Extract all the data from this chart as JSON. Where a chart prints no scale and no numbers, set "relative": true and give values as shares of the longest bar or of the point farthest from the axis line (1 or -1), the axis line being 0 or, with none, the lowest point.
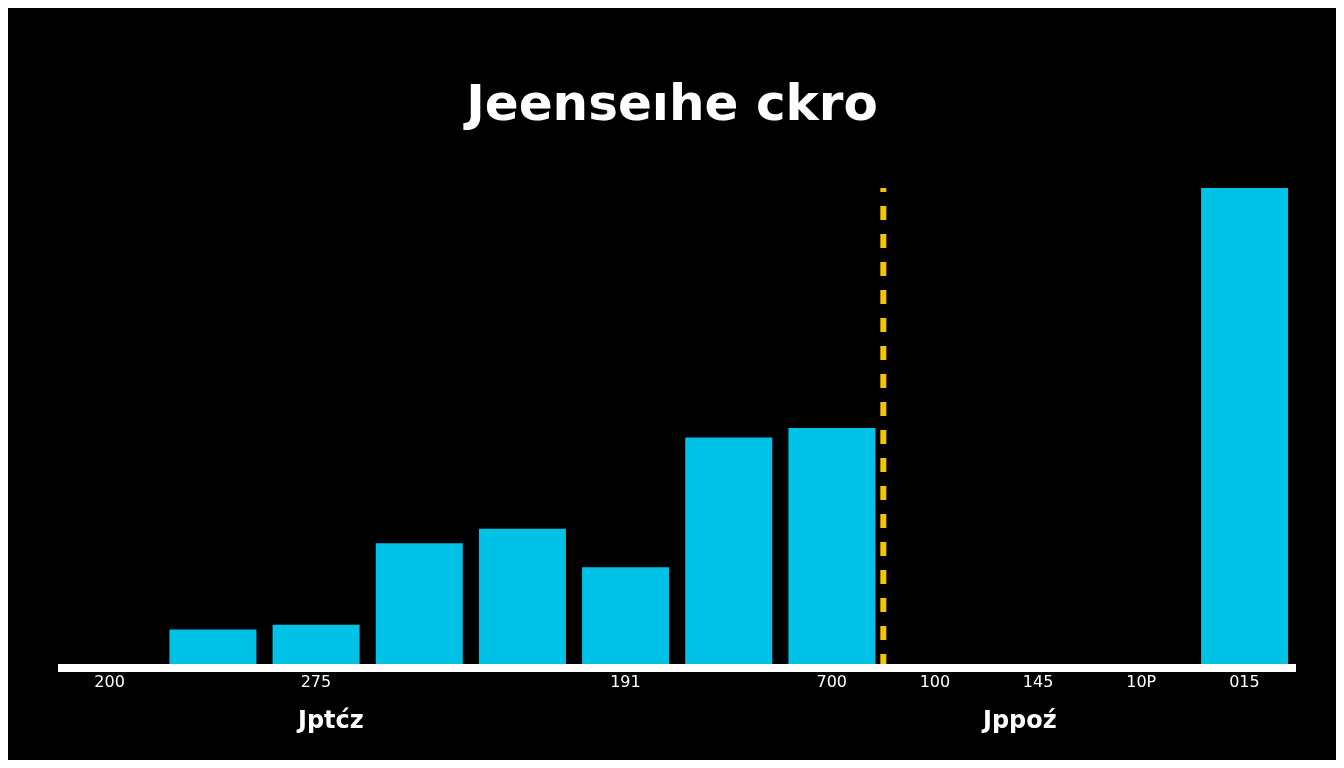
{
  "chart_data": {
    "type": "bar",
    "title": "Jeenseıhe ckro",
    "relative": true,
    "categories": [
      "200",
      null,
      "275",
      null,
      null,
      "191",
      null,
      "700",
      "100",
      "145",
      "10P",
      "015"
    ],
    "values": [
      null,
      0.08,
      0.09,
      0.26,
      0.29,
      0.21,
      0.48,
      0.5,
      null,
      null,
      null,
      1
    ],
    "color": "#00c2e6",
    "ref_lines": [
      {
        "axis": "x",
        "value": "700",
        "color": "#f5c400",
        "line_style": "dashed"
      }
    ],
    "annotations": [
      "Jptćz",
      "Jppoź"
    ],
    "grid": false,
    "legend": false
  }
}
